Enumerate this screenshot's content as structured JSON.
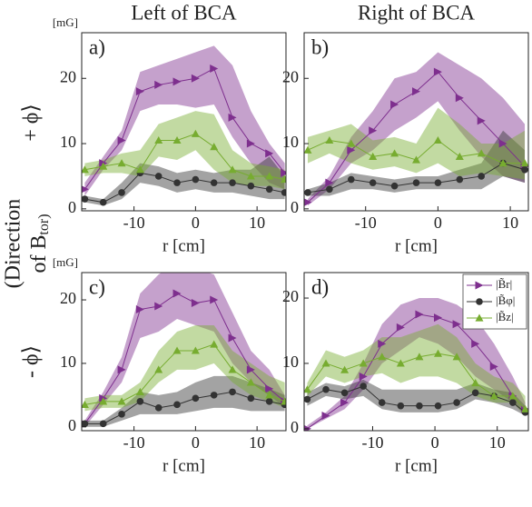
{
  "row_labels": [
    "+ ϕ⟩",
    "- ϕ⟩"
  ],
  "direction_label": [
    "(Direction",
    "of B",
    "tor)"
  ],
  "chart_data": [
    {
      "type": "line",
      "title": "Left of BCA",
      "panel": "a)",
      "ylabel": "[mG]",
      "xlabel": "r [cm]",
      "x": [
        -18,
        -15,
        -12,
        -9,
        -6,
        -3,
        0,
        3,
        6,
        9,
        12,
        14.5
      ],
      "xlim": [
        -18.5,
        14.7
      ],
      "ylim": [
        -0.3,
        27
      ],
      "xticks": [
        -10,
        0,
        10
      ],
      "yticks": [
        0,
        10,
        20
      ],
      "series": [
        {
          "color": "#7e2f8e",
          "marker": "triangle-right",
          "values": [
            3,
            7,
            10.5,
            18,
            19,
            19.5,
            20,
            21.5,
            14,
            10,
            8.5,
            5.5
          ],
          "lower": [
            2,
            6,
            9,
            15,
            16,
            16,
            15.5,
            16,
            11,
            7,
            4,
            3
          ],
          "upper": [
            4,
            8,
            12,
            21,
            22,
            23,
            24,
            25,
            22,
            15,
            10,
            7
          ]
        },
        {
          "color": "#333333",
          "marker": "circle",
          "values": [
            1.5,
            1,
            2.5,
            5.5,
            5,
            4,
            4.5,
            4,
            4,
            3.5,
            3,
            2.5
          ],
          "lower": [
            1,
            0.5,
            1.5,
            4,
            3.5,
            2.5,
            3,
            2.5,
            2.5,
            2,
            1.5,
            1.5
          ],
          "upper": [
            2,
            1.5,
            4,
            7,
            6.5,
            5.5,
            6,
            5.5,
            6,
            6,
            8,
            5
          ]
        },
        {
          "color": "#77ac30",
          "marker": "triangle-up",
          "values": [
            6,
            6.5,
            7,
            6,
            10.5,
            10.5,
            11.5,
            9.5,
            6,
            5,
            5,
            4.5
          ],
          "lower": [
            5,
            5.5,
            5.5,
            5,
            8,
            7.5,
            9,
            6,
            4,
            3.5,
            3.5,
            3
          ],
          "upper": [
            7,
            7.5,
            8.5,
            9,
            13,
            14,
            15,
            14.5,
            9,
            7,
            6.5,
            6
          ]
        }
      ]
    },
    {
      "type": "line",
      "title": "Right of BCA",
      "panel": "b)",
      "xlabel": "r [cm]",
      "x": [
        -18,
        -15,
        -12,
        -9,
        -6,
        -3,
        0,
        3,
        6,
        9,
        12
      ],
      "xlim": [
        -18.5,
        12.5
      ],
      "ylim": [
        -0.3,
        27
      ],
      "xticks": [
        -10,
        0,
        10
      ],
      "yticks": [
        0,
        10,
        20
      ],
      "series": [
        {
          "color": "#7e2f8e",
          "marker": "triangle-right",
          "values": [
            1,
            4,
            9,
            12,
            16,
            18,
            21,
            17,
            13.5,
            10,
            6.5
          ],
          "lower": [
            0.5,
            3,
            7,
            9,
            12,
            14,
            16.5,
            12,
            8,
            5,
            4
          ],
          "upper": [
            1.5,
            5,
            11,
            15,
            20,
            21,
            24,
            22,
            20,
            17,
            13
          ]
        },
        {
          "color": "#333333",
          "marker": "circle",
          "values": [
            2.5,
            3,
            4.5,
            4,
            3.5,
            4,
            4,
            4.5,
            5,
            7,
            6
          ],
          "lower": [
            2,
            2,
            3,
            3,
            2.5,
            3,
            3,
            3,
            3,
            5,
            4
          ],
          "upper": [
            3,
            4,
            5.5,
            5,
            4.5,
            5,
            5,
            6,
            7,
            12,
            9
          ]
        },
        {
          "color": "#77ac30",
          "marker": "triangle-up",
          "values": [
            9,
            10.5,
            10,
            8,
            8.5,
            7.5,
            10.5,
            8,
            8.5,
            7,
            7
          ],
          "lower": [
            7,
            8.5,
            7,
            6,
            6.5,
            5.5,
            7,
            5,
            5.5,
            5,
            4.5
          ],
          "upper": [
            11,
            12,
            13,
            10.5,
            11,
            10,
            15.5,
            13,
            10,
            10,
            12
          ]
        }
      ]
    },
    {
      "type": "line",
      "panel": "c)",
      "ylabel": "[mG]",
      "xlabel": "r [cm]",
      "x": [
        -18,
        -15,
        -12,
        -9,
        -6,
        -3,
        0,
        3,
        6,
        9,
        12,
        14.5
      ],
      "xlim": [
        -18.5,
        14.7
      ],
      "ylim": [
        -0.6,
        24.3
      ],
      "xticks": [
        -10,
        0,
        10
      ],
      "yticks": [
        0,
        10,
        20
      ],
      "series": [
        {
          "color": "#7e2f8e",
          "marker": "triangle-right",
          "values": [
            0.5,
            4.5,
            9,
            18.5,
            19,
            21,
            19.5,
            20,
            14,
            9,
            6,
            4
          ],
          "lower": [
            0,
            3.5,
            7,
            14,
            15,
            17,
            16,
            15,
            10,
            7,
            5,
            3
          ],
          "upper": [
            1,
            5.5,
            11,
            21,
            24,
            26,
            25,
            24,
            18,
            12,
            9,
            5
          ]
        },
        {
          "color": "#333333",
          "marker": "circle",
          "values": [
            0.5,
            0.5,
            2,
            4,
            3,
            3.5,
            4.5,
            5,
            5.5,
            4.5,
            4,
            3.5
          ],
          "lower": [
            0,
            0,
            1,
            2,
            2,
            2,
            2.5,
            3,
            3,
            2.5,
            2.5,
            2.5
          ],
          "upper": [
            1,
            1,
            3,
            5.5,
            5,
            5.5,
            7,
            8,
            8,
            7,
            6,
            5
          ]
        },
        {
          "color": "#77ac30",
          "marker": "triangle-up",
          "values": [
            3.5,
            4,
            4,
            5.5,
            9,
            12,
            12,
            13,
            9,
            7,
            5,
            4
          ],
          "lower": [
            2.5,
            3,
            3,
            4,
            7,
            9,
            9,
            10,
            7,
            5,
            4,
            3
          ],
          "upper": [
            4.5,
            5,
            5,
            7,
            12,
            15,
            16,
            16,
            12,
            10,
            8,
            7
          ]
        }
      ]
    },
    {
      "type": "line",
      "panel": "d)",
      "xlabel": "r [cm]",
      "legend": "upper right",
      "x": [
        -20.5,
        -17.5,
        -14.5,
        -11.5,
        -8.5,
        -5.5,
        -2.5,
        0.5,
        3.5,
        6.5,
        9.5,
        12.5,
        14.5
      ],
      "xlim": [
        -21,
        15
      ],
      "ylim": [
        -0.3,
        23.9
      ],
      "xticks": [
        -10,
        0,
        10
      ],
      "yticks": [
        0,
        10,
        20
      ],
      "series": [
        {
          "name": "|B̃r|",
          "color": "#7e2f8e",
          "marker": "triangle-right",
          "values": [
            0,
            2,
            4,
            8,
            13,
            15.5,
            17.5,
            17,
            16,
            13,
            9.5,
            5,
            3
          ],
          "lower": [
            0,
            1.5,
            3,
            6,
            10,
            12,
            14,
            13,
            11,
            8,
            6,
            4,
            2
          ],
          "upper": [
            0.5,
            2.5,
            5,
            10,
            16,
            19,
            20,
            20,
            19,
            17,
            13,
            8,
            4
          ]
        },
        {
          "name": "|B̃φ|",
          "color": "#333333",
          "marker": "circle",
          "values": [
            4.5,
            6,
            5.5,
            6.5,
            4,
            3.5,
            3.5,
            3.5,
            4,
            5.5,
            5,
            4,
            2.5
          ],
          "lower": [
            3.5,
            5,
            4.5,
            5,
            3,
            2.5,
            2.5,
            2.5,
            3,
            4.5,
            4,
            3,
            2
          ],
          "upper": [
            5.5,
            7,
            6.5,
            7.5,
            6,
            6,
            6,
            6,
            6,
            7,
            6,
            5.5,
            3.5
          ]
        },
        {
          "name": "|B̃z|",
          "color": "#77ac30",
          "marker": "triangle-up",
          "values": [
            6,
            10,
            9,
            10,
            11,
            10,
            11,
            11.5,
            11,
            7,
            5,
            5,
            3
          ],
          "lower": [
            5,
            8,
            7,
            8,
            8.5,
            7,
            8,
            8,
            7,
            5,
            4,
            4,
            2
          ],
          "upper": [
            7,
            12,
            11,
            12,
            14,
            14,
            15,
            16,
            14,
            10,
            8,
            7,
            5
          ]
        }
      ]
    }
  ]
}
